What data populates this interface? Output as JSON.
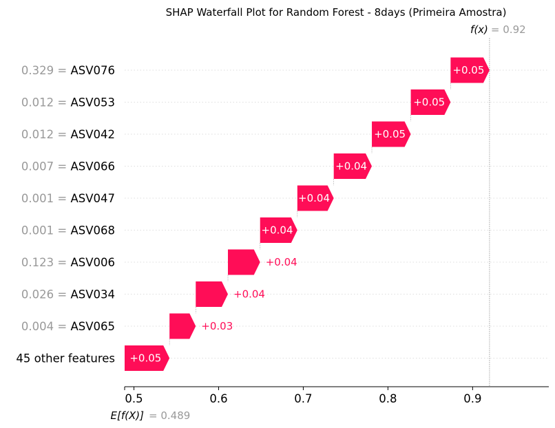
{
  "chart_data": {
    "type": "waterfall",
    "title": "SHAP Waterfall Plot for Random Forest - 8days (Primeira Amostra)",
    "fx_label": "f(x)",
    "fx_value": "0.92",
    "efx_label": "E[f(X)]",
    "efx_value": "0.489",
    "base_value": 0.489,
    "final_value": 0.92,
    "xlim": [
      0.489,
      0.99
    ],
    "x_ticks": [
      "0.5",
      "0.6",
      "0.7",
      "0.8",
      "0.9"
    ],
    "rows": [
      {
        "feature": "ASV076",
        "feature_value": "0.329",
        "shap": 0.046,
        "label": "+0.05"
      },
      {
        "feature": "ASV053",
        "feature_value": "0.012",
        "shap": 0.047,
        "label": "+0.05"
      },
      {
        "feature": "ASV042",
        "feature_value": "0.012",
        "shap": 0.046,
        "label": "+0.05"
      },
      {
        "feature": "ASV066",
        "feature_value": "0.007",
        "shap": 0.045,
        "label": "+0.04"
      },
      {
        "feature": "ASV047",
        "feature_value": "0.001",
        "shap": 0.043,
        "label": "+0.04"
      },
      {
        "feature": "ASV068",
        "feature_value": "0.001",
        "shap": 0.044,
        "label": "+0.04"
      },
      {
        "feature": "ASV006",
        "feature_value": "0.123",
        "shap": 0.038,
        "label": "+0.04"
      },
      {
        "feature": "ASV034",
        "feature_value": "0.026",
        "shap": 0.038,
        "label": "+0.04"
      },
      {
        "feature": "ASV065",
        "feature_value": "0.004",
        "shap": 0.031,
        "label": "+0.03"
      },
      {
        "feature": "45 other features",
        "feature_value": "",
        "shap": 0.053,
        "label": "+0.05"
      }
    ],
    "colors": {
      "positive": "#ff0d57",
      "text_inside": "#ffffff",
      "value_gray": "#999999",
      "axis": "#000000"
    }
  }
}
